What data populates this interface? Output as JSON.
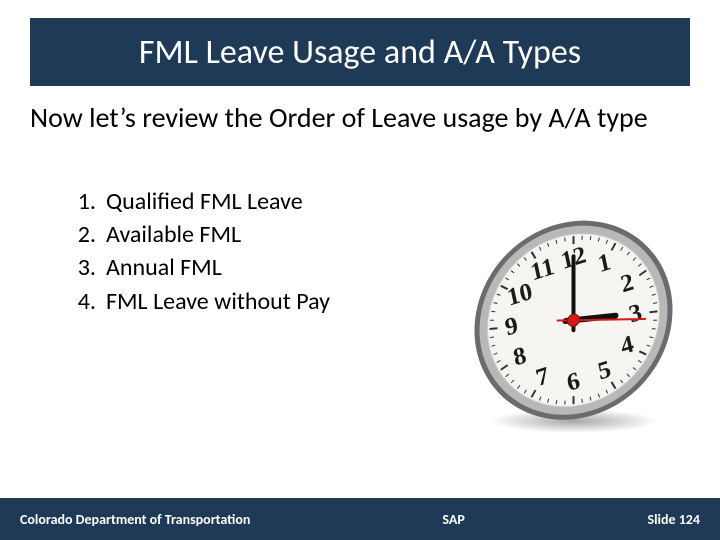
{
  "slide": {
    "title": "FML Leave Usage and A/A Types",
    "intro": "Now let’s review the Order of Leave usage by A/A type",
    "list": [
      {
        "n": "1.",
        "text": "Qualified FML Leave"
      },
      {
        "n": "2.",
        "text": "Available FML"
      },
      {
        "n": "3.",
        "text": "Annual FML"
      },
      {
        "n": "4.",
        "text": "FML Leave without Pay"
      }
    ],
    "footer": {
      "left": "Colorado Department of Transportation",
      "mid": "SAP",
      "right": "Slide 124"
    }
  },
  "style": {
    "title_band_color": "#1f3a56",
    "title_text_color": "#ffffff",
    "title_fontsize": 34,
    "intro_fontsize": 28,
    "list_fontsize": 24,
    "footer_bg": "#1f3a56",
    "footer_text_color": "#ffffff",
    "footer_fontsize": 14,
    "clock": {
      "bezel_outer": "#6b6b6b",
      "bezel_inner": "#b8b8b8",
      "face": "#f6f5f2",
      "numeral_color": "#1a1a1a",
      "numeral_fontsize": 25,
      "numeral_rotation_deg": -12,
      "hand_color": "#111111",
      "second_hand_color": "#d61a1a",
      "hub_color": "#d61a1a",
      "tilt_skew_y_deg": -6,
      "numerals": [
        "12",
        "1",
        "2",
        "3",
        "4",
        "5",
        "6",
        "7",
        "8",
        "9",
        "10",
        "11"
      ],
      "hour_hand_angle_deg": 90,
      "minute_hand_angle_deg": 0,
      "second_hand_angle_deg": 95
    }
  }
}
